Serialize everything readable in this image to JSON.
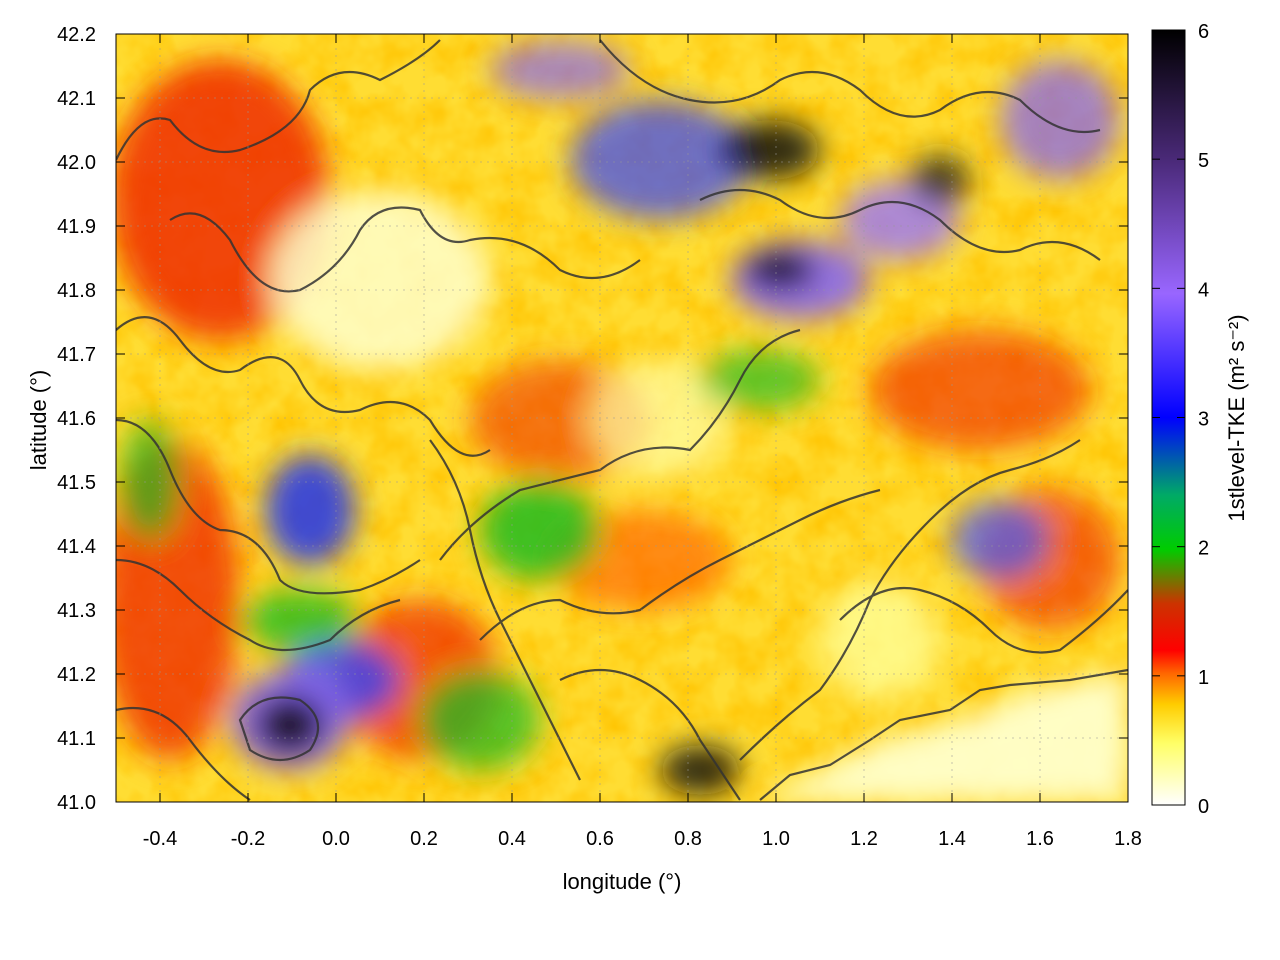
{
  "chart_data": {
    "type": "heatmap",
    "xlabel": "longitude (°)",
    "ylabel": "latitude (°)",
    "colorbar_label": "1stlevel-TKE (m² s⁻²)",
    "xlim": [
      -0.5,
      1.8
    ],
    "ylim": [
      41.0,
      42.2
    ],
    "zlim": [
      0,
      6
    ],
    "x_ticks": [
      "-0.4",
      "-0.2",
      "0.0",
      "0.2",
      "0.4",
      "0.6",
      "0.8",
      "1.0",
      "1.2",
      "1.4",
      "1.6",
      "1.8"
    ],
    "x_tick_values": [
      -0.4,
      -0.2,
      0.0,
      0.2,
      0.4,
      0.6,
      0.8,
      1.0,
      1.2,
      1.4,
      1.6,
      1.8
    ],
    "y_ticks": [
      "41.0",
      "41.1",
      "41.2",
      "41.3",
      "41.4",
      "41.5",
      "41.6",
      "41.7",
      "41.8",
      "41.9",
      "42.0",
      "42.1",
      "42.2"
    ],
    "y_tick_values": [
      41.0,
      41.1,
      41.2,
      41.3,
      41.4,
      41.5,
      41.6,
      41.7,
      41.8,
      41.9,
      42.0,
      42.1,
      42.2
    ],
    "colorbar_ticks": [
      "0",
      "1",
      "2",
      "3",
      "4",
      "5",
      "6"
    ],
    "colorbar_tick_values": [
      0,
      1,
      2,
      3,
      4,
      5,
      6
    ],
    "grid": true,
    "contour_overlay": true,
    "colormap": [
      "#ffffff",
      "#ffff66",
      "#ffcc00",
      "#ff6600",
      "#ff0000",
      "#cc3300",
      "#00cc00",
      "#0000ff",
      "#9966ff",
      "#4b2a7a",
      "#000000"
    ],
    "regions": [
      {
        "lon": -0.12,
        "lat": 41.12,
        "tke": 5.6
      },
      {
        "lon": 0.08,
        "lat": 41.22,
        "tke": 3.6
      },
      {
        "lon": -0.05,
        "lat": 41.46,
        "tke": 3.2
      },
      {
        "lon": 0.48,
        "lat": 41.42,
        "tke": 2.4
      },
      {
        "lon": 1.0,
        "lat": 41.8,
        "tke": 5.2
      },
      {
        "lon": 0.9,
        "lat": 42.05,
        "tke": 5.0
      },
      {
        "lon": 1.35,
        "lat": 41.95,
        "tke": 4.6
      },
      {
        "lon": 0.2,
        "lat": 41.75,
        "tke": 0.2
      },
      {
        "lon": 1.55,
        "lat": 41.08,
        "tke": 0.1
      },
      {
        "lon": -0.3,
        "lat": 41.95,
        "tke": 1.0
      }
    ]
  }
}
